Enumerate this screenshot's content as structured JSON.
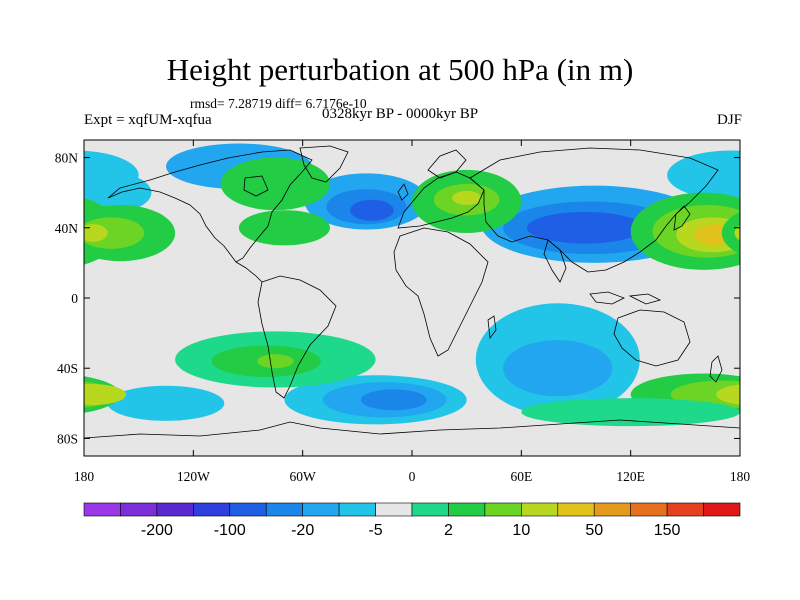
{
  "title": "Height perturbation at 500 hPa (in m)",
  "stats": "rmsd= 7.28719 diff= 6.7176e-10",
  "period": "0328kyr BP - 0000kyr BP",
  "experiment": "Expt = xqfUM-xqfua",
  "season": "DJF",
  "colors": {
    "n200": "#9a37e6",
    "n150": "#7c2fd9",
    "n100": "#5a2ad0",
    "n50": "#2f3fe0",
    "n20": "#1f5fe6",
    "n10": "#1a86ea",
    "n5": "#22a6f0",
    "n2": "#22c4e8",
    "zero": "#e6e6e6",
    "p2": "#1fd98a",
    "p5": "#22cc44",
    "p10": "#6cd424",
    "p20": "#b8d820",
    "p50": "#e0c21a",
    "p100": "#e69a1c",
    "p150": "#e6701e",
    "p200": "#e64020",
    "p250": "#e01818",
    "land_outline": "#000000"
  },
  "x_axis": {
    "labels": [
      "180",
      "120W",
      "60W",
      "0",
      "60E",
      "120E",
      "180"
    ],
    "values": [
      -180,
      -120,
      -60,
      0,
      60,
      120,
      180
    ]
  },
  "y_axis": {
    "labels": [
      "80N",
      "40N",
      "0",
      "40S",
      "80S"
    ],
    "values": [
      80,
      40,
      0,
      -40,
      -80
    ],
    "range": [
      -90,
      90
    ]
  },
  "colorbar": {
    "labels": [
      "-200",
      "-100",
      "-20",
      "-5",
      "2",
      "10",
      "50",
      "150"
    ],
    "label_bins": [
      1,
      3,
      5,
      7,
      9,
      11,
      13,
      15
    ],
    "bins": [
      "n200",
      "n150",
      "n100",
      "n50",
      "n20",
      "n10",
      "n5",
      "n2",
      "zero",
      "p2",
      "p5",
      "p10",
      "p20",
      "p50",
      "p100",
      "p150",
      "p200",
      "p250"
    ]
  },
  "anomalies": [
    {
      "lon": -95,
      "lat": 75,
      "rx": 40,
      "ry": 13,
      "c": "n5"
    },
    {
      "lon": -25,
      "lat": 55,
      "rx": 34,
      "ry": 16,
      "c": "n5"
    },
    {
      "lon": -25,
      "lat": 52,
      "rx": 22,
      "ry": 10,
      "c": "n10"
    },
    {
      "lon": -22,
      "lat": 50,
      "rx": 12,
      "ry": 6,
      "c": "n20"
    },
    {
      "lon": 100,
      "lat": 42,
      "rx": 62,
      "ry": 22,
      "c": "n5"
    },
    {
      "lon": 98,
      "lat": 40,
      "rx": 48,
      "ry": 15,
      "c": "n10"
    },
    {
      "lon": 95,
      "lat": 40,
      "rx": 32,
      "ry": 9,
      "c": "n20"
    },
    {
      "lon": 80,
      "lat": -35,
      "rx": 45,
      "ry": 32,
      "c": "n2"
    },
    {
      "lon": 80,
      "lat": -40,
      "rx": 30,
      "ry": 16,
      "c": "n5"
    },
    {
      "lon": -20,
      "lat": -58,
      "rx": 50,
      "ry": 14,
      "c": "n2"
    },
    {
      "lon": -15,
      "lat": -58,
      "rx": 34,
      "ry": 10,
      "c": "n5"
    },
    {
      "lon": -10,
      "lat": -58,
      "rx": 18,
      "ry": 6,
      "c": "n10"
    },
    {
      "lon": -135,
      "lat": -60,
      "rx": 32,
      "ry": 10,
      "c": "n2"
    },
    {
      "lon": 175,
      "lat": 70,
      "rx": 35,
      "ry": 14,
      "c": "n2"
    },
    {
      "lon": -168,
      "lat": 60,
      "rx": 25,
      "ry": 12,
      "c": "n2"
    },
    {
      "lon": 160,
      "lat": 38,
      "rx": 40,
      "ry": 22,
      "c": "p5"
    },
    {
      "lon": 162,
      "lat": 38,
      "rx": 30,
      "ry": 15,
      "c": "p10"
    },
    {
      "lon": 165,
      "lat": 36,
      "rx": 20,
      "ry": 10,
      "c": "p20"
    },
    {
      "lon": 166,
      "lat": 36,
      "rx": 11,
      "ry": 6,
      "c": "p50"
    },
    {
      "lon": -160,
      "lat": 37,
      "rx": 30,
      "ry": 16,
      "c": "p5"
    },
    {
      "lon": -165,
      "lat": 37,
      "rx": 18,
      "ry": 9,
      "c": "p10"
    },
    {
      "lon": -175,
      "lat": 37,
      "rx": 8,
      "ry": 5,
      "c": "p20"
    },
    {
      "lon": -70,
      "lat": 40,
      "rx": 25,
      "ry": 10,
      "c": "p5"
    },
    {
      "lon": -75,
      "lat": 65,
      "rx": 30,
      "ry": 15,
      "c": "p5"
    },
    {
      "lon": 30,
      "lat": 55,
      "rx": 30,
      "ry": 18,
      "c": "p5"
    },
    {
      "lon": 30,
      "lat": 56,
      "rx": 18,
      "ry": 9,
      "c": "p10"
    },
    {
      "lon": 30,
      "lat": 57,
      "rx": 8,
      "ry": 4,
      "c": "p20"
    },
    {
      "lon": -75,
      "lat": -35,
      "rx": 55,
      "ry": 16,
      "c": "p2"
    },
    {
      "lon": -80,
      "lat": -36,
      "rx": 30,
      "ry": 9,
      "c": "p5"
    },
    {
      "lon": -75,
      "lat": -36,
      "rx": 10,
      "ry": 4,
      "c": "p10"
    },
    {
      "lon": 160,
      "lat": -55,
      "rx": 40,
      "ry": 12,
      "c": "p5"
    },
    {
      "lon": 170,
      "lat": -55,
      "rx": 28,
      "ry": 8,
      "c": "p10"
    },
    {
      "lon": -175,
      "lat": -55,
      "rx": 18,
      "ry": 6,
      "c": "p20"
    },
    {
      "lon": 120,
      "lat": -65,
      "rx": 60,
      "ry": 8,
      "c": "p2"
    }
  ]
}
